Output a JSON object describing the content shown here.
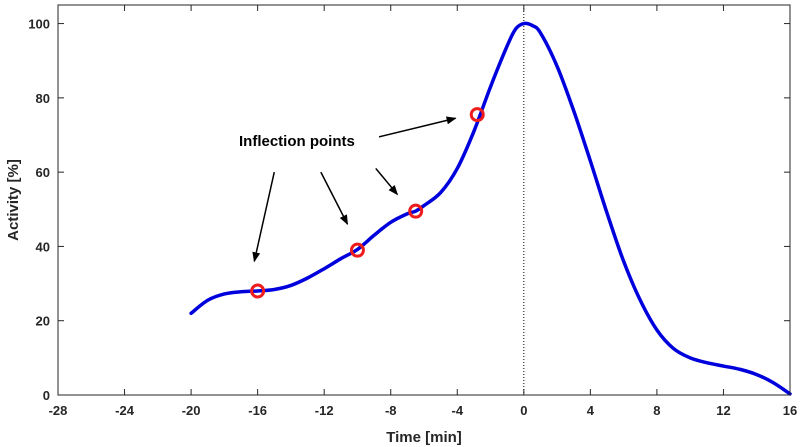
{
  "chart_data": {
    "type": "line",
    "title": "",
    "xlabel": "Time [min]",
    "ylabel": "Activity [%]",
    "xlim": [
      -28,
      16
    ],
    "ylim": [
      0,
      105
    ],
    "xticks": [
      -28,
      -24,
      -20,
      -16,
      -12,
      -8,
      -4,
      0,
      4,
      8,
      12,
      16
    ],
    "xtick_labels": [
      "-28",
      "-24",
      "-20",
      "-16",
      "-12",
      "-8",
      "-4",
      "0",
      "4",
      "8",
      "12",
      "16"
    ],
    "yticks": [
      0,
      20,
      40,
      60,
      80,
      100
    ],
    "ytick_labels": [
      "0",
      "20",
      "40",
      "60",
      "80",
      "100"
    ],
    "grid": false,
    "series": [
      {
        "name": "Activity",
        "color": "#0000dd",
        "x": [
          -20,
          -19,
          -18,
          -17,
          -16,
          -15,
          -14,
          -13,
          -12,
          -11,
          -10,
          -9,
          -8,
          -7,
          -6.5,
          -6,
          -5,
          -4,
          -3,
          -2,
          -1,
          -0.5,
          0,
          0.5,
          1,
          2,
          3,
          4,
          5,
          6,
          7,
          8,
          9,
          10,
          11,
          12,
          13,
          14,
          15,
          16
        ],
        "y": [
          22,
          25.5,
          27.2,
          27.8,
          28,
          28.4,
          29.5,
          31.5,
          34,
          36.7,
          39.2,
          43,
          46.5,
          48.8,
          49.5,
          51,
          54.5,
          61,
          71,
          83,
          94,
          98.5,
          100,
          99.5,
          97.5,
          88.5,
          76.5,
          63,
          49,
          36,
          25.5,
          17.5,
          12.5,
          10,
          8.7,
          7.8,
          6.9,
          5.5,
          3.3,
          0.3
        ]
      }
    ],
    "reference_line": {
      "x": 0,
      "style": "dotted",
      "color": "#000000"
    },
    "markers": {
      "color": "#ee1c1c",
      "points": [
        {
          "x": -16,
          "y": 28
        },
        {
          "x": -10,
          "y": 39
        },
        {
          "x": -6.5,
          "y": 49.5
        },
        {
          "x": -2.8,
          "y": 75.5
        }
      ]
    },
    "annotation": {
      "text": "Inflection points",
      "arrows": [
        {
          "from": {
            "x": -15,
            "y": 60
          },
          "to": {
            "x": -16.2,
            "y": 36
          }
        },
        {
          "from": {
            "x": -12.2,
            "y": 60
          },
          "to": {
            "x": -10.6,
            "y": 46
          }
        },
        {
          "from": {
            "x": -8.9,
            "y": 61
          },
          "to": {
            "x": -7.6,
            "y": 54
          }
        },
        {
          "from": {
            "x": -8.7,
            "y": 69.5
          },
          "to": {
            "x": -4.1,
            "y": 74.5
          }
        }
      ]
    }
  }
}
